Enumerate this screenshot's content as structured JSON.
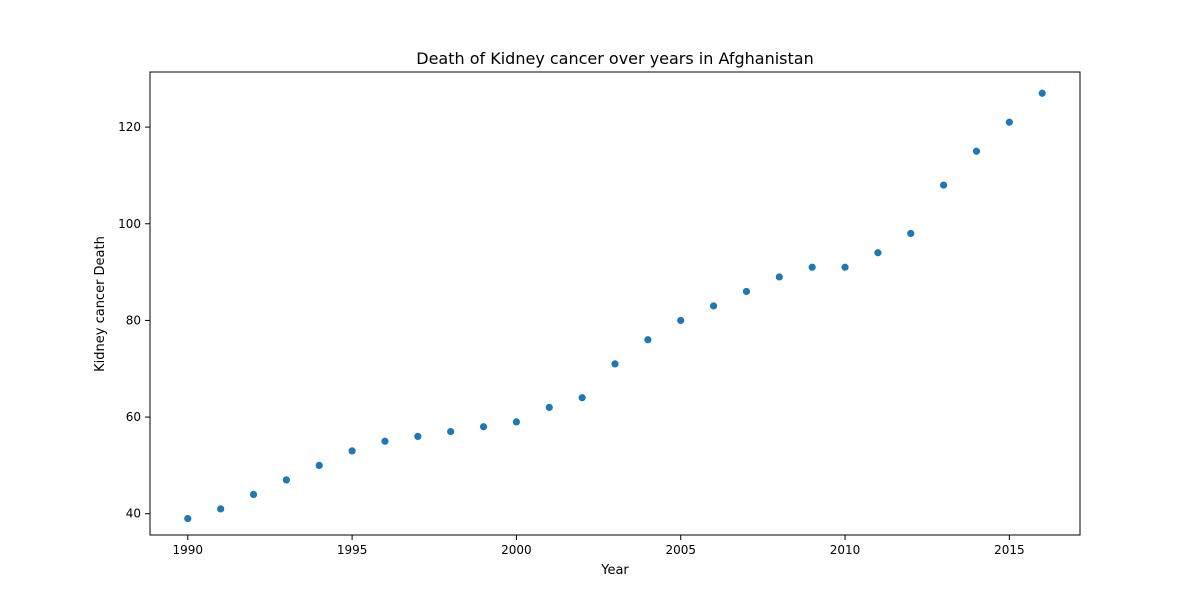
{
  "chart_data": {
    "type": "scatter",
    "title": "Death of Kidney cancer over years in Afghanistan",
    "xlabel": "Year",
    "ylabel": "Kidney cancer Death",
    "xlim": [
      1988.85,
      2017.15
    ],
    "ylim": [
      35.6,
      131.4
    ],
    "x_ticks": [
      1990,
      1995,
      2000,
      2005,
      2010,
      2015
    ],
    "y_ticks": [
      40,
      60,
      80,
      100,
      120
    ],
    "grid": false,
    "legend": "none",
    "marker_color": "#1f77b4",
    "x": [
      1990,
      1991,
      1992,
      1993,
      1994,
      1995,
      1996,
      1997,
      1998,
      1999,
      2000,
      2001,
      2002,
      2003,
      2004,
      2005,
      2006,
      2007,
      2008,
      2009,
      2010,
      2011,
      2012,
      2013,
      2014,
      2015,
      2016
    ],
    "y": [
      39,
      41,
      44,
      47,
      50,
      53,
      55,
      56,
      57,
      58,
      59,
      62,
      64,
      71,
      76,
      80,
      83,
      86,
      89,
      91,
      91,
      94,
      98,
      108,
      115,
      121,
      127
    ]
  }
}
